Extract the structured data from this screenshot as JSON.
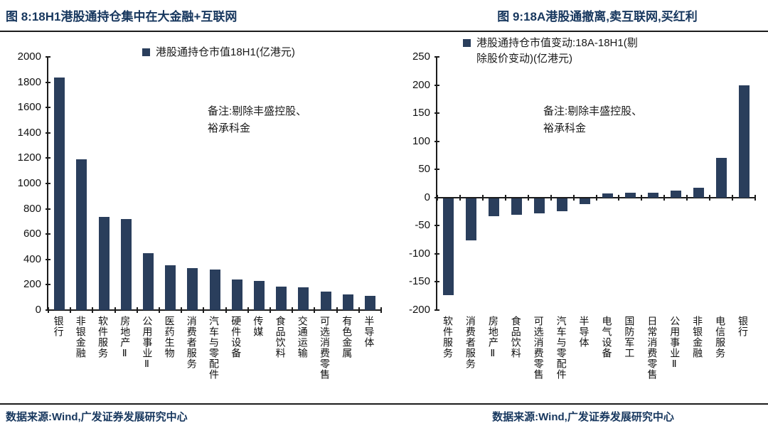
{
  "sources": {
    "left": "数据来源:Wind,广发证券发展研究中心",
    "right": "数据来源:Wind,广发证券发展研究中心"
  },
  "chart_data": [
    {
      "type": "bar",
      "title": "图 8:18H1港股通持仓集中在大金融+互联网",
      "legend_lines": [
        "港股通持仓市值18H1(亿港元)"
      ],
      "note_lines": [
        "备注:剔除丰盛控股、",
        "裕承科金"
      ],
      "categories": [
        "银行",
        "非银金融",
        "软件服务",
        "房地产Ⅱ",
        "公用事业Ⅱ",
        "医药生物",
        "消费者服务",
        "汽车与零配件",
        "硬件设备",
        "传媒",
        "食品饮料",
        "交通运输",
        "可选消费零售",
        "有色金属",
        "半导体"
      ],
      "values": [
        1835,
        1190,
        735,
        720,
        450,
        355,
        330,
        322,
        243,
        230,
        186,
        181,
        146,
        126,
        115
      ],
      "ylim": [
        0,
        2000
      ],
      "ytick_step": 200,
      "grid": false,
      "legend_position": "top",
      "bar_color": "#2A3E5C"
    },
    {
      "type": "bar",
      "title": "图 9:18A港股通撤离,卖互联网,买红利",
      "legend_lines": [
        "港股通持仓市值变动:18A-18H1(剔",
        "除股价变动)(亿港元)"
      ],
      "note_lines": [
        "备注:剔除丰盛控股、",
        "裕承科金"
      ],
      "categories": [
        "软件服务",
        "消费者服务",
        "房地产Ⅱ",
        "食品饮料",
        "可选消费零售",
        "汽车与零配件",
        "半导体",
        "电气设备",
        "国防军工",
        "日常消费零售",
        "公用事业Ⅱ",
        "非银金融",
        "电信服务",
        "银行"
      ],
      "values": [
        -172,
        -75,
        -32,
        -30,
        -27,
        -23,
        -10,
        7,
        8,
        9,
        12,
        17,
        70,
        200
      ],
      "ylim": [
        -200,
        250
      ],
      "ytick_step": 50,
      "grid": false,
      "legend_position": "top",
      "bar_color": "#2A3E5C"
    }
  ]
}
